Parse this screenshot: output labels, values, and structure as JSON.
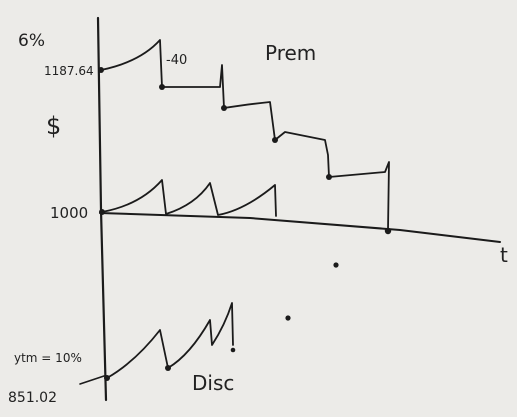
{
  "labels": {
    "corner_note": "6%",
    "premium_price": "1187.64",
    "drop_annotation": "-40",
    "premium_label": "Prem",
    "dollar_axis": "$",
    "par_value": "1000",
    "time_axis": "t",
    "discount_yield_note": "ytm = 10%",
    "discount_price": "851.02",
    "discount_label": "Disc"
  }
}
